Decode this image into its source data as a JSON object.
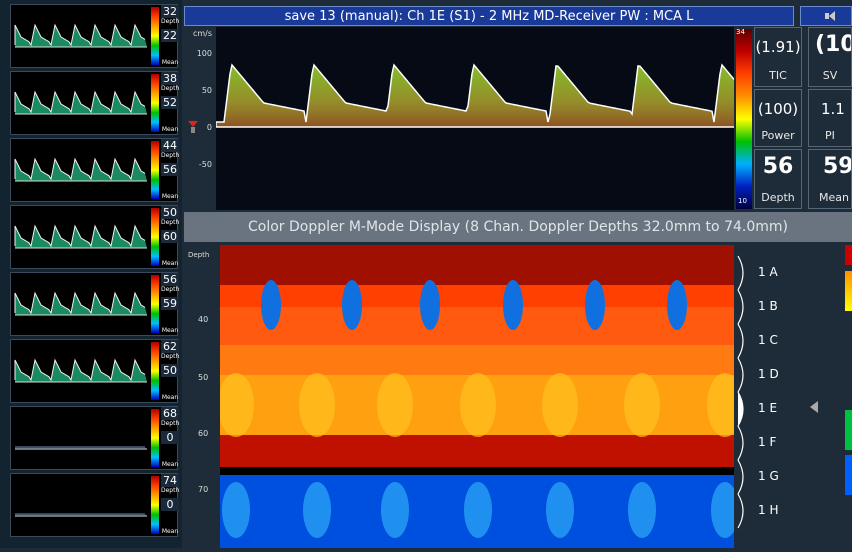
{
  "titlebar": {
    "title": "save 13 (manual): Ch 1E (S1) - 2 MHz MD-Receiver PW : MCA L"
  },
  "thumbnails": [
    {
      "top": "32",
      "bottom": "22",
      "top_label": "Depth",
      "bottom_label": "Mean"
    },
    {
      "top": "38",
      "bottom": "52",
      "top_label": "Depth",
      "bottom_label": "Mean"
    },
    {
      "top": "44",
      "bottom": "56",
      "top_label": "Depth",
      "bottom_label": "Mean"
    },
    {
      "top": "50",
      "bottom": "60",
      "top_label": "Depth",
      "bottom_label": "Mean"
    },
    {
      "top": "56",
      "bottom": "59",
      "top_label": "Depth",
      "bottom_label": "Mean"
    },
    {
      "top": "62",
      "bottom": "50",
      "top_label": "Depth",
      "bottom_label": "Mean"
    },
    {
      "top": "68",
      "bottom": "0",
      "top_label": "Depth",
      "bottom_label": "Mean"
    },
    {
      "top": "74",
      "bottom": "0",
      "top_label": "Depth",
      "bottom_label": "Mean"
    }
  ],
  "spectrum": {
    "unit": "cm/s",
    "ticks": [
      "100",
      "50",
      "0",
      "-50"
    ],
    "scale_max": "34",
    "scale_min": "10"
  },
  "panels": {
    "tic": {
      "value": "(1.91)",
      "label": "TIC"
    },
    "sv": {
      "value": "(10",
      "label": "SV"
    },
    "power": {
      "value": "(100)",
      "label": "Power"
    },
    "pi": {
      "value": "1.1",
      "label": "PI"
    },
    "depth": {
      "value": "56",
      "label": "Depth"
    },
    "mean": {
      "value": "59",
      "label": "Mean"
    }
  },
  "mmode": {
    "title": "Color Doppler M-Mode Display (8 Chan. Doppler Depths 32.0mm to 74.0mm)",
    "axis_label": "Depth",
    "ticks": [
      "40",
      "50",
      "60",
      "70"
    ],
    "channels": [
      "1 A",
      "1 B",
      "1 C",
      "1 D",
      "1 E",
      "1 F",
      "1 G",
      "1 H"
    ],
    "selected_channel": "1 E"
  },
  "colors": {
    "title_bg": "#1a3a9a",
    "mmode_title_bg": "#6a7480",
    "app_bg": "#1e2b38"
  }
}
